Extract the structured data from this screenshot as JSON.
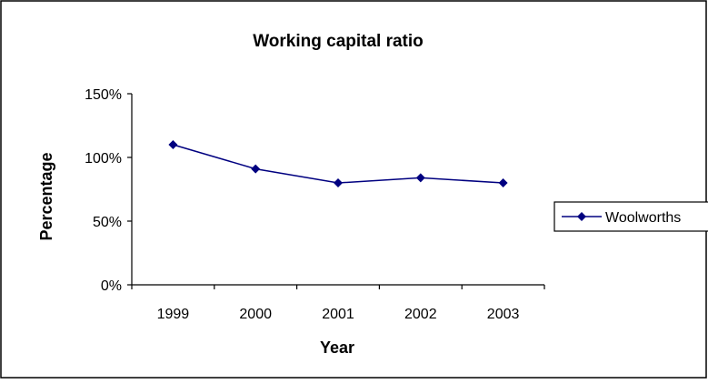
{
  "chart_data": {
    "type": "line",
    "title": "Working capital ratio",
    "xlabel": "Year",
    "ylabel": "Percentage",
    "categories": [
      "1999",
      "2000",
      "2001",
      "2002",
      "2003"
    ],
    "series": [
      {
        "name": "Woolworths",
        "values": [
          110,
          91,
          80,
          84,
          80
        ],
        "color": "#000080",
        "marker": "diamond"
      }
    ],
    "ylim": [
      0,
      150
    ],
    "yticks": [
      0,
      50,
      100,
      150
    ],
    "ytick_labels": [
      "0%",
      "50%",
      "100%",
      "150%"
    ],
    "grid": false,
    "legend_position": "right"
  }
}
